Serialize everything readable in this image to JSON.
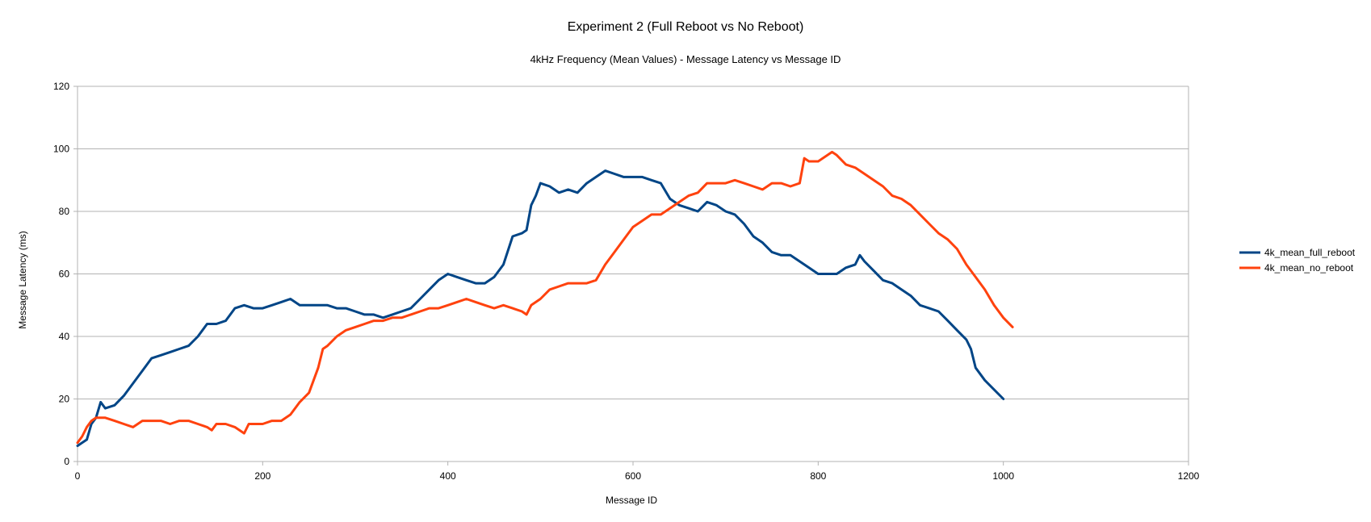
{
  "chart_data": {
    "type": "line",
    "title": "Experiment 2 (Full Reboot vs No Reboot)",
    "subtitle": "4kHz Frequency (Mean Values) - Message Latency vs Message ID",
    "xlabel": "Message ID",
    "ylabel": "Message Latency (ms)",
    "xlim": [
      0,
      1200
    ],
    "ylim": [
      0,
      120
    ],
    "xticks": [
      "0",
      "200",
      "400",
      "600",
      "800",
      "1000",
      "1200"
    ],
    "yticks": [
      "0",
      "20",
      "40",
      "60",
      "80",
      "100",
      "120"
    ],
    "grid": "horizontal",
    "legend_position": "right",
    "series": [
      {
        "name": "4k_mean_full_reboot",
        "color": "#004586",
        "points": [
          [
            0,
            5
          ],
          [
            5,
            6
          ],
          [
            10,
            7
          ],
          [
            15,
            12
          ],
          [
            20,
            14
          ],
          [
            25,
            19
          ],
          [
            30,
            17
          ],
          [
            40,
            18
          ],
          [
            50,
            21
          ],
          [
            60,
            25
          ],
          [
            70,
            29
          ],
          [
            80,
            33
          ],
          [
            90,
            34
          ],
          [
            100,
            35
          ],
          [
            110,
            36
          ],
          [
            120,
            37
          ],
          [
            130,
            40
          ],
          [
            140,
            44
          ],
          [
            150,
            44
          ],
          [
            160,
            45
          ],
          [
            170,
            49
          ],
          [
            180,
            50
          ],
          [
            190,
            49
          ],
          [
            200,
            49
          ],
          [
            210,
            50
          ],
          [
            220,
            51
          ],
          [
            230,
            52
          ],
          [
            240,
            50
          ],
          [
            250,
            50
          ],
          [
            260,
            50
          ],
          [
            270,
            50
          ],
          [
            280,
            49
          ],
          [
            290,
            49
          ],
          [
            300,
            48
          ],
          [
            310,
            47
          ],
          [
            320,
            47
          ],
          [
            330,
            46
          ],
          [
            340,
            47
          ],
          [
            350,
            48
          ],
          [
            360,
            49
          ],
          [
            370,
            52
          ],
          [
            380,
            55
          ],
          [
            390,
            58
          ],
          [
            400,
            60
          ],
          [
            410,
            59
          ],
          [
            420,
            58
          ],
          [
            430,
            57
          ],
          [
            440,
            57
          ],
          [
            450,
            59
          ],
          [
            460,
            63
          ],
          [
            470,
            72
          ],
          [
            480,
            73
          ],
          [
            485,
            74
          ],
          [
            490,
            82
          ],
          [
            495,
            85
          ],
          [
            500,
            89
          ],
          [
            510,
            88
          ],
          [
            520,
            86
          ],
          [
            530,
            87
          ],
          [
            540,
            86
          ],
          [
            550,
            89
          ],
          [
            560,
            91
          ],
          [
            570,
            93
          ],
          [
            580,
            92
          ],
          [
            590,
            91
          ],
          [
            600,
            91
          ],
          [
            610,
            91
          ],
          [
            620,
            90
          ],
          [
            630,
            89
          ],
          [
            640,
            84
          ],
          [
            650,
            82
          ],
          [
            660,
            81
          ],
          [
            670,
            80
          ],
          [
            680,
            83
          ],
          [
            690,
            82
          ],
          [
            700,
            80
          ],
          [
            710,
            79
          ],
          [
            720,
            76
          ],
          [
            730,
            72
          ],
          [
            740,
            70
          ],
          [
            750,
            67
          ],
          [
            760,
            66
          ],
          [
            770,
            66
          ],
          [
            780,
            64
          ],
          [
            790,
            62
          ],
          [
            800,
            60
          ],
          [
            810,
            60
          ],
          [
            820,
            60
          ],
          [
            830,
            62
          ],
          [
            840,
            63
          ],
          [
            845,
            66
          ],
          [
            850,
            64
          ],
          [
            860,
            61
          ],
          [
            870,
            58
          ],
          [
            880,
            57
          ],
          [
            890,
            55
          ],
          [
            900,
            53
          ],
          [
            910,
            50
          ],
          [
            920,
            49
          ],
          [
            930,
            48
          ],
          [
            940,
            45
          ],
          [
            950,
            42
          ],
          [
            960,
            39
          ],
          [
            965,
            36
          ],
          [
            970,
            30
          ],
          [
            980,
            26
          ],
          [
            990,
            23
          ],
          [
            1000,
            20
          ]
        ]
      },
      {
        "name": "4k_mean_no_reboot",
        "color": "#ff420e",
        "points": [
          [
            0,
            6
          ],
          [
            5,
            8
          ],
          [
            10,
            11
          ],
          [
            15,
            13
          ],
          [
            20,
            14
          ],
          [
            30,
            14
          ],
          [
            40,
            13
          ],
          [
            50,
            12
          ],
          [
            60,
            11
          ],
          [
            70,
            13
          ],
          [
            80,
            13
          ],
          [
            90,
            13
          ],
          [
            100,
            12
          ],
          [
            110,
            13
          ],
          [
            120,
            13
          ],
          [
            130,
            12
          ],
          [
            140,
            11
          ],
          [
            145,
            10
          ],
          [
            150,
            12
          ],
          [
            160,
            12
          ],
          [
            170,
            11
          ],
          [
            180,
            9
          ],
          [
            185,
            12
          ],
          [
            190,
            12
          ],
          [
            200,
            12
          ],
          [
            210,
            13
          ],
          [
            220,
            13
          ],
          [
            230,
            15
          ],
          [
            240,
            19
          ],
          [
            250,
            22
          ],
          [
            255,
            26
          ],
          [
            260,
            30
          ],
          [
            265,
            36
          ],
          [
            270,
            37
          ],
          [
            280,
            40
          ],
          [
            290,
            42
          ],
          [
            300,
            43
          ],
          [
            310,
            44
          ],
          [
            320,
            45
          ],
          [
            330,
            45
          ],
          [
            340,
            46
          ],
          [
            350,
            46
          ],
          [
            360,
            47
          ],
          [
            370,
            48
          ],
          [
            380,
            49
          ],
          [
            390,
            49
          ],
          [
            400,
            50
          ],
          [
            410,
            51
          ],
          [
            420,
            52
          ],
          [
            430,
            51
          ],
          [
            440,
            50
          ],
          [
            450,
            49
          ],
          [
            460,
            50
          ],
          [
            470,
            49
          ],
          [
            480,
            48
          ],
          [
            485,
            47
          ],
          [
            490,
            50
          ],
          [
            500,
            52
          ],
          [
            510,
            55
          ],
          [
            520,
            56
          ],
          [
            530,
            57
          ],
          [
            540,
            57
          ],
          [
            550,
            57
          ],
          [
            560,
            58
          ],
          [
            570,
            63
          ],
          [
            580,
            67
          ],
          [
            590,
            71
          ],
          [
            600,
            75
          ],
          [
            610,
            77
          ],
          [
            620,
            79
          ],
          [
            630,
            79
          ],
          [
            640,
            81
          ],
          [
            650,
            83
          ],
          [
            660,
            85
          ],
          [
            670,
            86
          ],
          [
            680,
            89
          ],
          [
            690,
            89
          ],
          [
            700,
            89
          ],
          [
            710,
            90
          ],
          [
            720,
            89
          ],
          [
            730,
            88
          ],
          [
            740,
            87
          ],
          [
            750,
            89
          ],
          [
            760,
            89
          ],
          [
            770,
            88
          ],
          [
            780,
            89
          ],
          [
            785,
            97
          ],
          [
            790,
            96
          ],
          [
            800,
            96
          ],
          [
            810,
            98
          ],
          [
            815,
            99
          ],
          [
            820,
            98
          ],
          [
            830,
            95
          ],
          [
            840,
            94
          ],
          [
            850,
            92
          ],
          [
            860,
            90
          ],
          [
            870,
            88
          ],
          [
            880,
            85
          ],
          [
            890,
            84
          ],
          [
            900,
            82
          ],
          [
            910,
            79
          ],
          [
            920,
            76
          ],
          [
            930,
            73
          ],
          [
            940,
            71
          ],
          [
            950,
            68
          ],
          [
            960,
            63
          ],
          [
            970,
            59
          ],
          [
            980,
            55
          ],
          [
            990,
            50
          ],
          [
            1000,
            46
          ],
          [
            1010,
            43
          ]
        ]
      }
    ]
  }
}
